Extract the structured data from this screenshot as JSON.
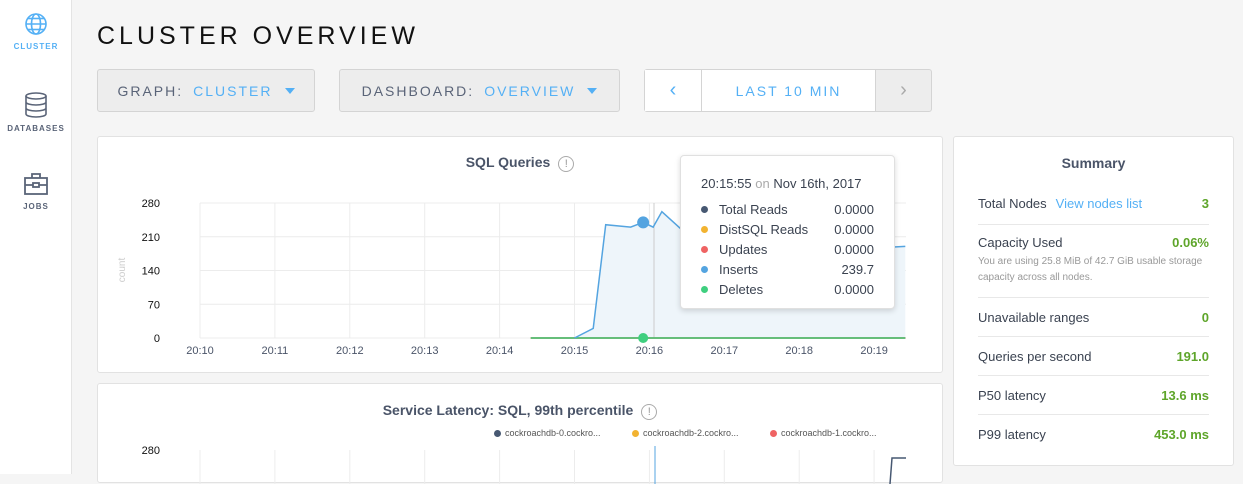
{
  "sidebar": {
    "items": [
      {
        "label": "CLUSTER",
        "icon": "globe-icon",
        "active": true
      },
      {
        "label": "DATABASES",
        "icon": "database-icon"
      },
      {
        "label": "JOBS",
        "icon": "briefcase-icon"
      }
    ]
  },
  "page": {
    "title": "CLUSTER OVERVIEW"
  },
  "controls": {
    "graph_label": "GRAPH:",
    "graph_value": "CLUSTER",
    "dashboard_label": "DASHBOARD:",
    "dashboard_value": "OVERVIEW",
    "time_range": "LAST 10 MIN",
    "prev": "‹",
    "next": "›"
  },
  "colors": {
    "accent": "#54b0f5",
    "good": "#5ea52a"
  },
  "chart_data": [
    {
      "type": "area",
      "title": "SQL Queries",
      "ylabel": "count",
      "ylim": [
        0,
        280
      ],
      "yticks": [
        "280",
        "210",
        "140",
        "70",
        "0"
      ],
      "xticks": [
        "20:10",
        "20:11",
        "20:12",
        "20:13",
        "20:14",
        "20:15",
        "20:16",
        "20:17",
        "20:18",
        "20:19"
      ],
      "grid": true,
      "series": [
        {
          "name": "Total Reads",
          "color": "#475872",
          "points": [
            [
              "20:14:25",
              0
            ],
            [
              "20:19:25",
              0
            ]
          ]
        },
        {
          "name": "DistSQL Reads",
          "color": "#f2b331",
          "points": [
            [
              "20:14:25",
              0
            ],
            [
              "20:19:25",
              0
            ]
          ]
        },
        {
          "name": "Updates",
          "color": "#ef6363",
          "points": [
            [
              "20:14:25",
              0
            ],
            [
              "20:19:25",
              0
            ]
          ]
        },
        {
          "name": "Inserts",
          "color": "#54a4e0",
          "points": [
            [
              "20:15:00",
              0
            ],
            [
              "20:15:15",
              20
            ],
            [
              "20:15:25",
              235
            ],
            [
              "20:15:45",
              230
            ],
            [
              "20:15:55",
              239.7
            ],
            [
              "20:16:03",
              230
            ],
            [
              "20:16:10",
              262
            ],
            [
              "20:16:30",
              215
            ],
            [
              "20:17:00",
              225
            ],
            [
              "20:17:30",
              210
            ],
            [
              "20:18:00",
              230
            ],
            [
              "20:18:30",
              205
            ],
            [
              "20:18:55",
              245
            ],
            [
              "20:19:10",
              188
            ],
            [
              "20:19:25",
              190
            ]
          ]
        },
        {
          "name": "Deletes",
          "color": "#3fcf7f",
          "points": [
            [
              "20:14:25",
              0
            ],
            [
              "20:19:25",
              0
            ]
          ]
        }
      ],
      "tooltip": {
        "time": "20:15:55",
        "on": "on",
        "date": "Nov 16th, 2017",
        "rows": [
          {
            "name": "Total Reads",
            "value": "0.0000"
          },
          {
            "name": "DistSQL Reads",
            "value": "0.0000"
          },
          {
            "name": "Updates",
            "value": "0.0000"
          },
          {
            "name": "Inserts",
            "value": "239.7"
          },
          {
            "name": "Deletes",
            "value": "0.0000"
          }
        ]
      }
    },
    {
      "type": "line",
      "title": "Service Latency: SQL, 99th percentile",
      "yticks": [
        "280"
      ],
      "legend": [
        {
          "name": "cockroachdb-0.cockro...",
          "color": "#475872"
        },
        {
          "name": "cockroachdb-2.cockro...",
          "color": "#f2b331"
        },
        {
          "name": "cockroachdb-1.cockro...",
          "color": "#ef6363"
        }
      ]
    }
  ],
  "summary": {
    "title": "Summary",
    "rows": [
      {
        "label": "Total Nodes",
        "link": "View nodes list",
        "value": "3"
      },
      {
        "label": "Capacity Used",
        "value": "0.06%",
        "note": "You are using 25.8 MiB of 42.7 GiB usable storage capacity across all nodes."
      },
      {
        "label": "Unavailable ranges",
        "value": "0"
      },
      {
        "label": "Queries per second",
        "value": "191.0"
      },
      {
        "label": "P50 latency",
        "value": "13.6 ms"
      },
      {
        "label": "P99 latency",
        "value": "453.0 ms"
      }
    ]
  }
}
